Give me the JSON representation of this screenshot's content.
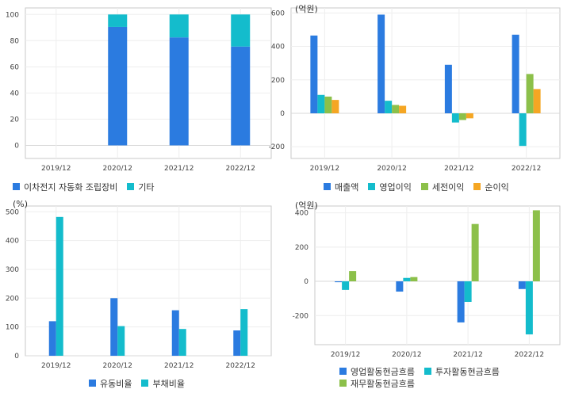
{
  "colors": {
    "blue": "#2b7be0",
    "cyan": "#14bccc",
    "green": "#8cc04a",
    "orange": "#f5a623"
  },
  "chart_data": [
    {
      "type": "bar",
      "stacked": true,
      "title": "",
      "unit": "",
      "categories": [
        "2019/12",
        "2020/12",
        "2021/12",
        "2022/12"
      ],
      "ylim": [
        -10,
        105
      ],
      "yticks": [
        0,
        20,
        40,
        60,
        80,
        100
      ],
      "series": [
        {
          "name": "이차전지 자동화 조립장비",
          "color": "#2b7be0",
          "values": [
            0,
            90.5,
            82.5,
            75.5
          ]
        },
        {
          "name": "기타",
          "color": "#14bccc",
          "values": [
            0,
            9.5,
            17.5,
            24.5
          ]
        }
      ],
      "grid": true,
      "legend": "bottom-left"
    },
    {
      "type": "bar",
      "title": "",
      "unit": "(억원)",
      "categories": [
        "2019/12",
        "2020/12",
        "2021/12",
        "2022/12"
      ],
      "ylim": [
        -270,
        630
      ],
      "yticks": [
        -200,
        0,
        200,
        400,
        600
      ],
      "series": [
        {
          "name": "매출액",
          "color": "#2b7be0",
          "values": [
            465,
            590,
            290,
            470
          ]
        },
        {
          "name": "영업이익",
          "color": "#14bccc",
          "values": [
            110,
            75,
            -55,
            -195
          ]
        },
        {
          "name": "세전이익",
          "color": "#8cc04a",
          "values": [
            100,
            50,
            -40,
            235
          ]
        },
        {
          "name": "순이익",
          "color": "#f5a623",
          "values": [
            80,
            45,
            -30,
            145
          ]
        }
      ],
      "grid": true,
      "legend": "bottom-left"
    },
    {
      "type": "bar",
      "title": "",
      "unit": "(%)",
      "categories": [
        "2019/12",
        "2020/12",
        "2021/12",
        "2022/12"
      ],
      "ylim": [
        0,
        520
      ],
      "yticks": [
        0,
        100,
        200,
        300,
        400,
        500
      ],
      "series": [
        {
          "name": "유동비율",
          "color": "#2b7be0",
          "values": [
            120,
            200,
            158,
            88
          ]
        },
        {
          "name": "부채비율",
          "color": "#14bccc",
          "values": [
            482,
            103,
            93,
            162
          ]
        }
      ],
      "grid": true,
      "legend": "bottom-center"
    },
    {
      "type": "bar",
      "title": "",
      "unit": "(억원)",
      "categories": [
        "2019/12",
        "2020/12",
        "2021/12",
        "2022/12"
      ],
      "ylim": [
        -370,
        440
      ],
      "yticks": [
        -200,
        0,
        200,
        400
      ],
      "series": [
        {
          "name": "영업활동현금흐름",
          "color": "#2b7be0",
          "values": [
            -5,
            -60,
            -240,
            -45
          ]
        },
        {
          "name": "투자활동현금흐름",
          "color": "#14bccc",
          "values": [
            -50,
            20,
            -120,
            -310
          ]
        },
        {
          "name": "재무활동현금흐름",
          "color": "#8cc04a",
          "values": [
            60,
            25,
            335,
            415
          ]
        }
      ],
      "grid": true,
      "legend": "bottom-center"
    }
  ]
}
